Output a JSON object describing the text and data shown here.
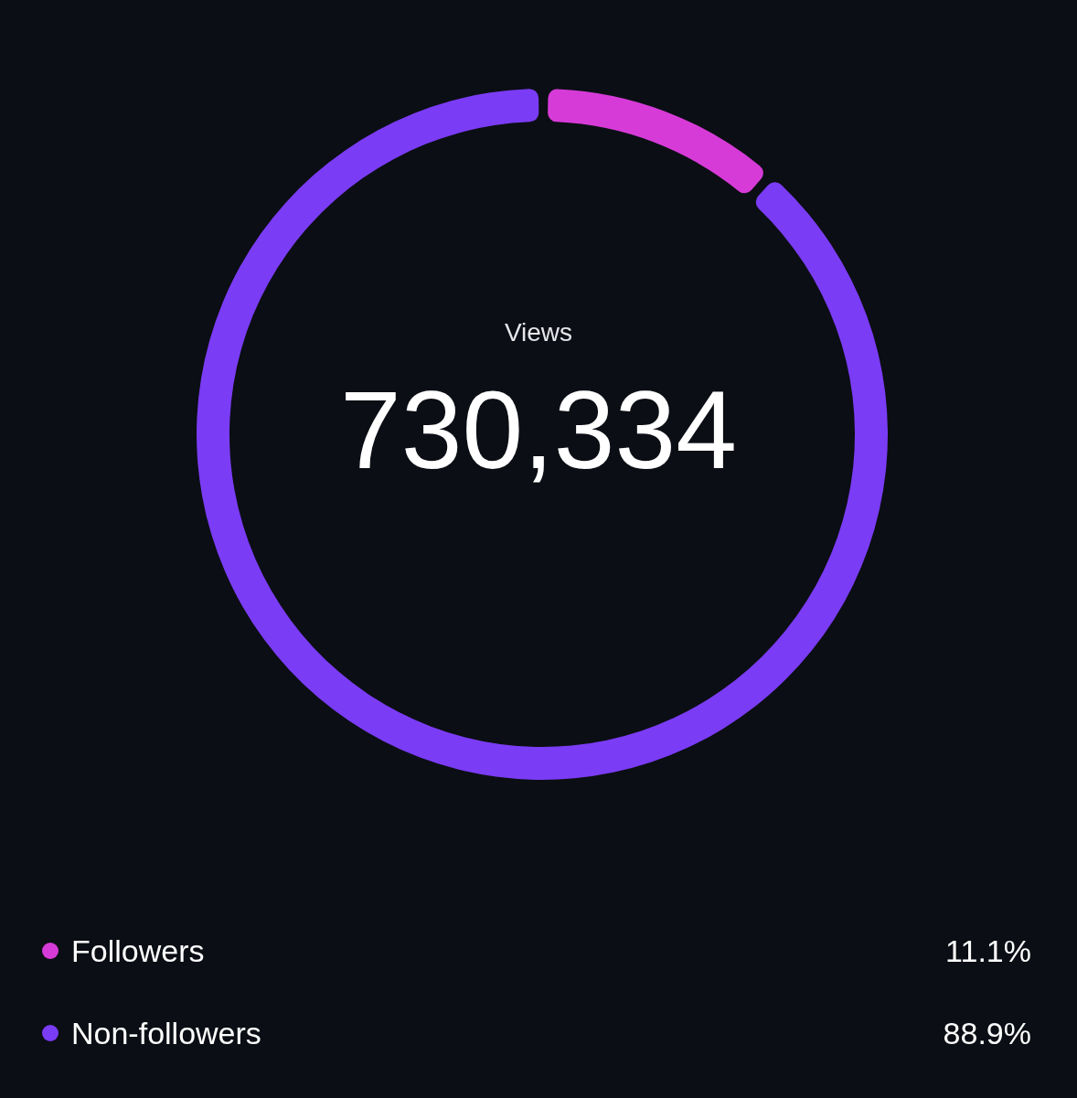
{
  "chart_data": {
    "type": "donut",
    "title": "Views",
    "subtitle": "730,334",
    "categories": [
      "Followers",
      "Non-followers"
    ],
    "values": [
      11.1,
      88.9
    ],
    "colors": [
      "#d63bd8",
      "#7b3cf5"
    ],
    "value_labels": [
      "11.1%",
      "88.9%"
    ],
    "legend": "bottom"
  }
}
